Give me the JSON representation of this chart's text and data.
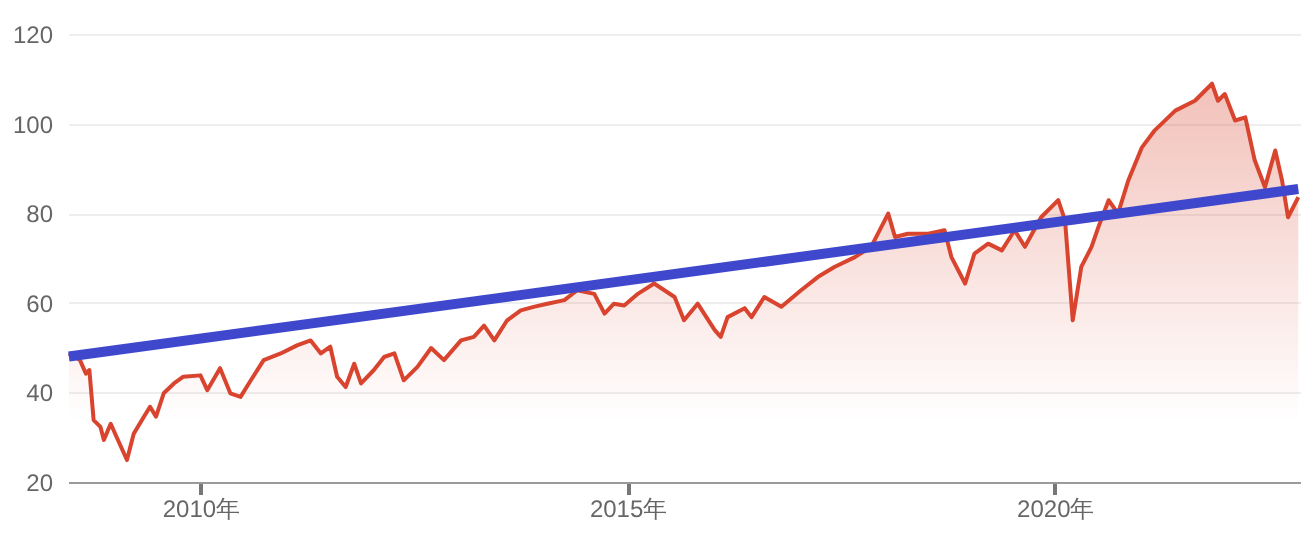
{
  "chart_data": {
    "type": "line",
    "xlim": [
      2008.45,
      2022.87
    ],
    "ylim": [
      20,
      120
    ],
    "xticks": [
      {
        "value": 2010,
        "label": "2010年"
      },
      {
        "value": 2015,
        "label": "2015年"
      },
      {
        "value": 2020,
        "label": "2020年"
      }
    ],
    "yticks": [
      20,
      40,
      60,
      80,
      100,
      120
    ],
    "grid": "y",
    "series": [
      {
        "type": "area",
        "color": "#d9442f",
        "x": [
          2008.46,
          2008.59,
          2008.66,
          2008.7,
          2008.75,
          2008.83,
          2008.87,
          2008.95,
          2009.02,
          2009.14,
          2009.22,
          2009.34,
          2009.41,
          2009.48,
          2009.57,
          2009.69,
          2009.8,
          2010.0,
          2010.08,
          2010.23,
          2010.35,
          2010.47,
          2010.59,
          2010.74,
          2010.94,
          2011.13,
          2011.29,
          2011.41,
          2011.52,
          2011.6,
          2011.7,
          2011.8,
          2011.88,
          2012.03,
          2012.15,
          2012.27,
          2012.38,
          2012.54,
          2012.7,
          2012.85,
          2013.05,
          2013.2,
          2013.32,
          2013.44,
          2013.59,
          2013.75,
          2013.9,
          2014.06,
          2014.26,
          2014.41,
          2014.61,
          2014.73,
          2014.84,
          2014.96,
          2015.12,
          2015.31,
          2015.55,
          2015.66,
          2015.82,
          2016.02,
          2016.09,
          2016.17,
          2016.37,
          2016.45,
          2016.6,
          2016.8,
          2017.03,
          2017.23,
          2017.42,
          2017.66,
          2017.85,
          2018.05,
          2018.13,
          2018.28,
          2018.52,
          2018.71,
          2018.79,
          2018.95,
          2019.06,
          2019.22,
          2019.38,
          2019.53,
          2019.65,
          2019.84,
          2020.04,
          2020.12,
          2020.21,
          2020.31,
          2020.43,
          2020.51,
          2020.63,
          2020.74,
          2020.86,
          2021.02,
          2021.17,
          2021.41,
          2021.64,
          2021.84,
          2021.91,
          2021.99,
          2022.11,
          2022.23,
          2022.34,
          2022.46,
          2022.58,
          2022.66,
          2022.73,
          2022.85
        ],
        "values": [
          48.7,
          47.2,
          44.2,
          45,
          33.8,
          32.3,
          29.4,
          33,
          30,
          24.9,
          30.8,
          34.6,
          36.8,
          34.6,
          39.8,
          42,
          43.5,
          43.8,
          40.5,
          45.4,
          39.8,
          39,
          42.7,
          47.2,
          48.7,
          50.5,
          51.6,
          48.7,
          50.2,
          43.5,
          41.2,
          46.4,
          42,
          45,
          47.9,
          48.7,
          42.7,
          45.7,
          49.9,
          47.2,
          51.6,
          52.4,
          54.9,
          51.6,
          56.1,
          58.3,
          59.1,
          59.8,
          60.6,
          62.8,
          62,
          57.6,
          59.8,
          59.4,
          62,
          64.3,
          61.3,
          56.1,
          59.8,
          53.9,
          52.4,
          56.8,
          58.8,
          56.8,
          61.3,
          59.1,
          62.8,
          65.8,
          68,
          70.2,
          72.5,
          79.9,
          74.7,
          75.4,
          75.4,
          76.2,
          70.2,
          64.3,
          71,
          73.2,
          71.7,
          76.2,
          72.5,
          79.1,
          82.9,
          78.4,
          56.1,
          68,
          72.5,
          76.9,
          82.9,
          79.9,
          87.3,
          94.7,
          98.5,
          102.9,
          105.1,
          108.9,
          105.1,
          106.6,
          100.7,
          101.4,
          91.8,
          85.8,
          94,
          87.3,
          79.1,
          83.6
        ]
      },
      {
        "color": "#3f48cc",
        "x": [
          2008.46,
          2022.85
        ],
        "values": [
          48,
          85.4
        ]
      }
    ]
  }
}
